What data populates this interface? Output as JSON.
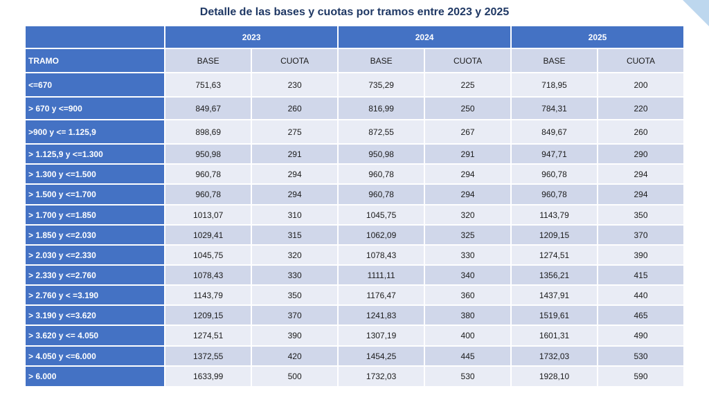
{
  "title": "Detalle de las bases y cuotas por tramos entre 2023 y 2025",
  "table": {
    "years": [
      "2023",
      "2024",
      "2025"
    ],
    "tramo_header": "TRAMO",
    "base_label": "BASE",
    "cuota_label": "CUOTA",
    "rows": [
      {
        "tramo": "<=670",
        "v": [
          "751,63",
          "230",
          "735,29",
          "225",
          "718,95",
          "200"
        ]
      },
      {
        "tramo": "> 670 y <=900",
        "v": [
          "849,67",
          "260",
          "816,99",
          "250",
          "784,31",
          "220"
        ]
      },
      {
        "tramo": ">900 y <= 1.125,9",
        "v": [
          "898,69",
          "275",
          "872,55",
          "267",
          "849,67",
          "260"
        ]
      },
      {
        "tramo": "> 1.125,9 y <=1.300",
        "v": [
          "950,98",
          "291",
          "950,98",
          "291",
          "947,71",
          "290"
        ]
      },
      {
        "tramo": "> 1.300 y <=1.500",
        "v": [
          "960,78",
          "294",
          "960,78",
          "294",
          "960,78",
          "294"
        ]
      },
      {
        "tramo": "> 1.500 y <=1.700",
        "v": [
          "960,78",
          "294",
          "960,78",
          "294",
          "960,78",
          "294"
        ]
      },
      {
        "tramo": "> 1.700 y <=1.850",
        "v": [
          "1013,07",
          "310",
          "1045,75",
          "320",
          "1143,79",
          "350"
        ]
      },
      {
        "tramo": "> 1.850 y <=2.030",
        "v": [
          "1029,41",
          "315",
          "1062,09",
          "325",
          "1209,15",
          "370"
        ]
      },
      {
        "tramo": "> 2.030 y <=2.330",
        "v": [
          "1045,75",
          "320",
          "1078,43",
          "330",
          "1274,51",
          "390"
        ]
      },
      {
        "tramo": "> 2.330 y <=2.760",
        "v": [
          "1078,43",
          "330",
          "1111,11",
          "340",
          "1356,21",
          "415"
        ]
      },
      {
        "tramo": "> 2.760 y < =3.190",
        "v": [
          "1143,79",
          "350",
          "1176,47",
          "360",
          "1437,91",
          "440"
        ]
      },
      {
        "tramo": "> 3.190 y <=3.620",
        "v": [
          "1209,15",
          "370",
          "1241,83",
          "380",
          "1519,61",
          "465"
        ]
      },
      {
        "tramo": "> 3.620 y <= 4.050",
        "v": [
          "1274,51",
          "390",
          "1307,19",
          "400",
          "1601,31",
          "490"
        ]
      },
      {
        "tramo": "> 4.050 y <=6.000",
        "v": [
          "1372,55",
          "420",
          "1454,25",
          "445",
          "1732,03",
          "530"
        ]
      },
      {
        "tramo": "> 6.000",
        "v": [
          "1633,99",
          "500",
          "1732,03",
          "530",
          "1928,10",
          "590"
        ]
      }
    ]
  },
  "colors": {
    "header_blue": "#4472c4",
    "title_navy": "#1f3864",
    "band_dark": "#d0d7ea",
    "band_light": "#e9ecf5",
    "corner_accent": "#bdd7ee"
  }
}
